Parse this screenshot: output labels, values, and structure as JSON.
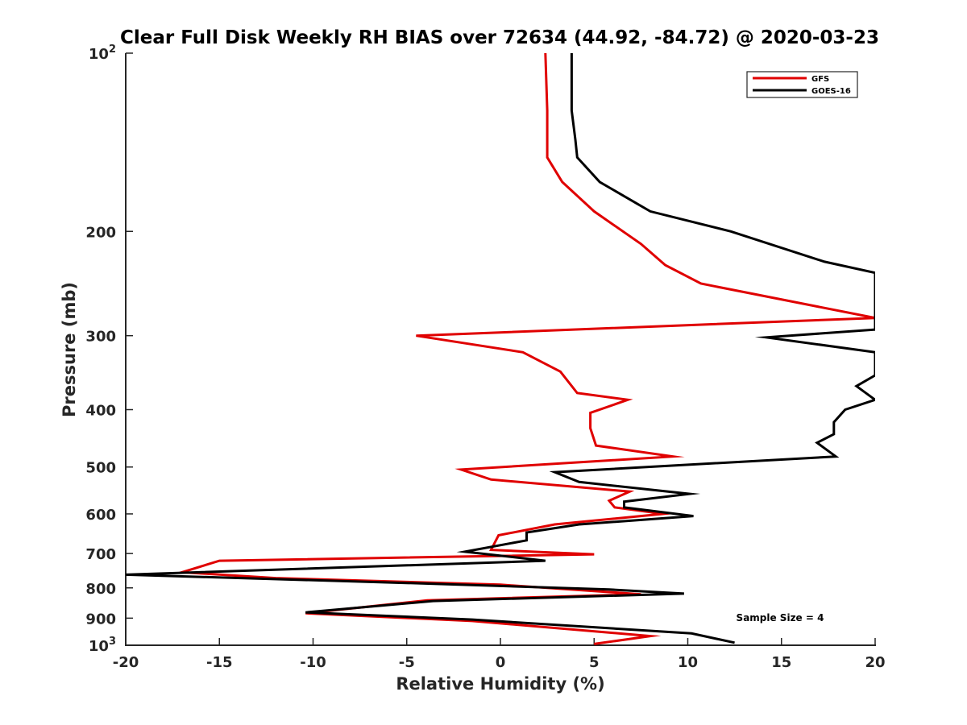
{
  "chart_data": {
    "type": "line",
    "title": "Clear Full Disk Weekly RH BIAS over 72634 (44.92, -84.72) @ 2020-03-23",
    "xlabel": "Relative Humidity (%)",
    "ylabel": "Pressure (mb)",
    "xlim": [
      -20,
      20
    ],
    "ylim": [
      100,
      1000
    ],
    "yscale": "log",
    "y_reversed": true,
    "grid": false,
    "legend_position": "top-right",
    "x_ticks": [
      {
        "value": -20,
        "label": "-20"
      },
      {
        "value": -15,
        "label": "-15"
      },
      {
        "value": -10,
        "label": "-10"
      },
      {
        "value": -5,
        "label": "-5"
      },
      {
        "value": 0,
        "label": "0"
      },
      {
        "value": 5,
        "label": "5"
      },
      {
        "value": 10,
        "label": "10"
      },
      {
        "value": 15,
        "label": "15"
      },
      {
        "value": 20,
        "label": "20"
      }
    ],
    "y_ticks": [
      {
        "value": 100,
        "base": "10",
        "exp": "2"
      },
      {
        "value": 200,
        "label": "200"
      },
      {
        "value": 300,
        "label": "300"
      },
      {
        "value": 400,
        "label": "400"
      },
      {
        "value": 500,
        "label": "500"
      },
      {
        "value": 600,
        "label": "600"
      },
      {
        "value": 700,
        "label": "700"
      },
      {
        "value": 800,
        "label": "800"
      },
      {
        "value": 900,
        "label": "900"
      },
      {
        "value": 1000,
        "base": "10",
        "exp": "3"
      }
    ],
    "series": [
      {
        "name": "GFS",
        "color": "#e00000",
        "points": [
          [
            2.4,
            100
          ],
          [
            2.5,
            125
          ],
          [
            2.5,
            150
          ],
          [
            3.3,
            165
          ],
          [
            5,
            185
          ],
          [
            7.5,
            210
          ],
          [
            8.8,
            228
          ],
          [
            10.7,
            245
          ],
          [
            20,
            280
          ],
          [
            -4.5,
            300
          ],
          [
            1.2,
            320
          ],
          [
            3.2,
            345
          ],
          [
            4.1,
            375
          ],
          [
            6.8,
            385
          ],
          [
            4.8,
            405
          ],
          [
            4.8,
            430
          ],
          [
            5.1,
            460
          ],
          [
            9.2,
            480
          ],
          [
            -2.1,
            505
          ],
          [
            -0.5,
            525
          ],
          [
            6.9,
            550
          ],
          [
            5.8,
            570
          ],
          [
            6.1,
            585
          ],
          [
            8.7,
            600
          ],
          [
            2.9,
            625
          ],
          [
            -0.1,
            652
          ],
          [
            -0.5,
            690
          ],
          [
            5,
            702
          ],
          [
            -15,
            720
          ],
          [
            -17,
            753
          ],
          [
            -12,
            770
          ],
          [
            0,
            790
          ],
          [
            7.5,
            820
          ],
          [
            -3.9,
            840
          ],
          [
            -10.4,
            883
          ],
          [
            -1.5,
            910
          ],
          [
            8,
            965
          ],
          [
            5,
            995
          ]
        ]
      },
      {
        "name": "GOES-16",
        "color": "#000000",
        "points": [
          [
            3.8,
            100
          ],
          [
            3.8,
            125
          ],
          [
            4.0,
            140
          ],
          [
            4.1,
            150
          ],
          [
            5.3,
            165
          ],
          [
            8,
            185
          ],
          [
            12.3,
            200
          ],
          [
            17.3,
            225
          ],
          [
            20,
            235
          ],
          [
            20,
            293
          ],
          [
            14.2,
            302
          ],
          [
            20,
            320
          ],
          [
            20,
            350
          ],
          [
            19,
            365
          ],
          [
            20,
            385
          ],
          [
            18.4,
            400
          ],
          [
            17.8,
            420
          ],
          [
            17.8,
            440
          ],
          [
            16.9,
            455
          ],
          [
            17.9,
            480
          ],
          [
            2.9,
            510
          ],
          [
            4.2,
            530
          ],
          [
            10.1,
            555
          ],
          [
            6.6,
            572
          ],
          [
            6.6,
            585
          ],
          [
            10.3,
            605
          ],
          [
            4.2,
            625
          ],
          [
            1.4,
            645
          ],
          [
            1.4,
            665
          ],
          [
            -1.9,
            695
          ],
          [
            2.4,
            720
          ],
          [
            -20,
            760
          ],
          [
            -5,
            785
          ],
          [
            5.8,
            805
          ],
          [
            9.8,
            818
          ],
          [
            -3.6,
            842
          ],
          [
            -10.4,
            880
          ],
          [
            -1.5,
            905
          ],
          [
            10.2,
            955
          ],
          [
            12.5,
            990
          ]
        ]
      }
    ],
    "annotations": [
      {
        "text": "Sample Size = 4",
        "x": 17.5,
        "y": 915
      }
    ]
  }
}
